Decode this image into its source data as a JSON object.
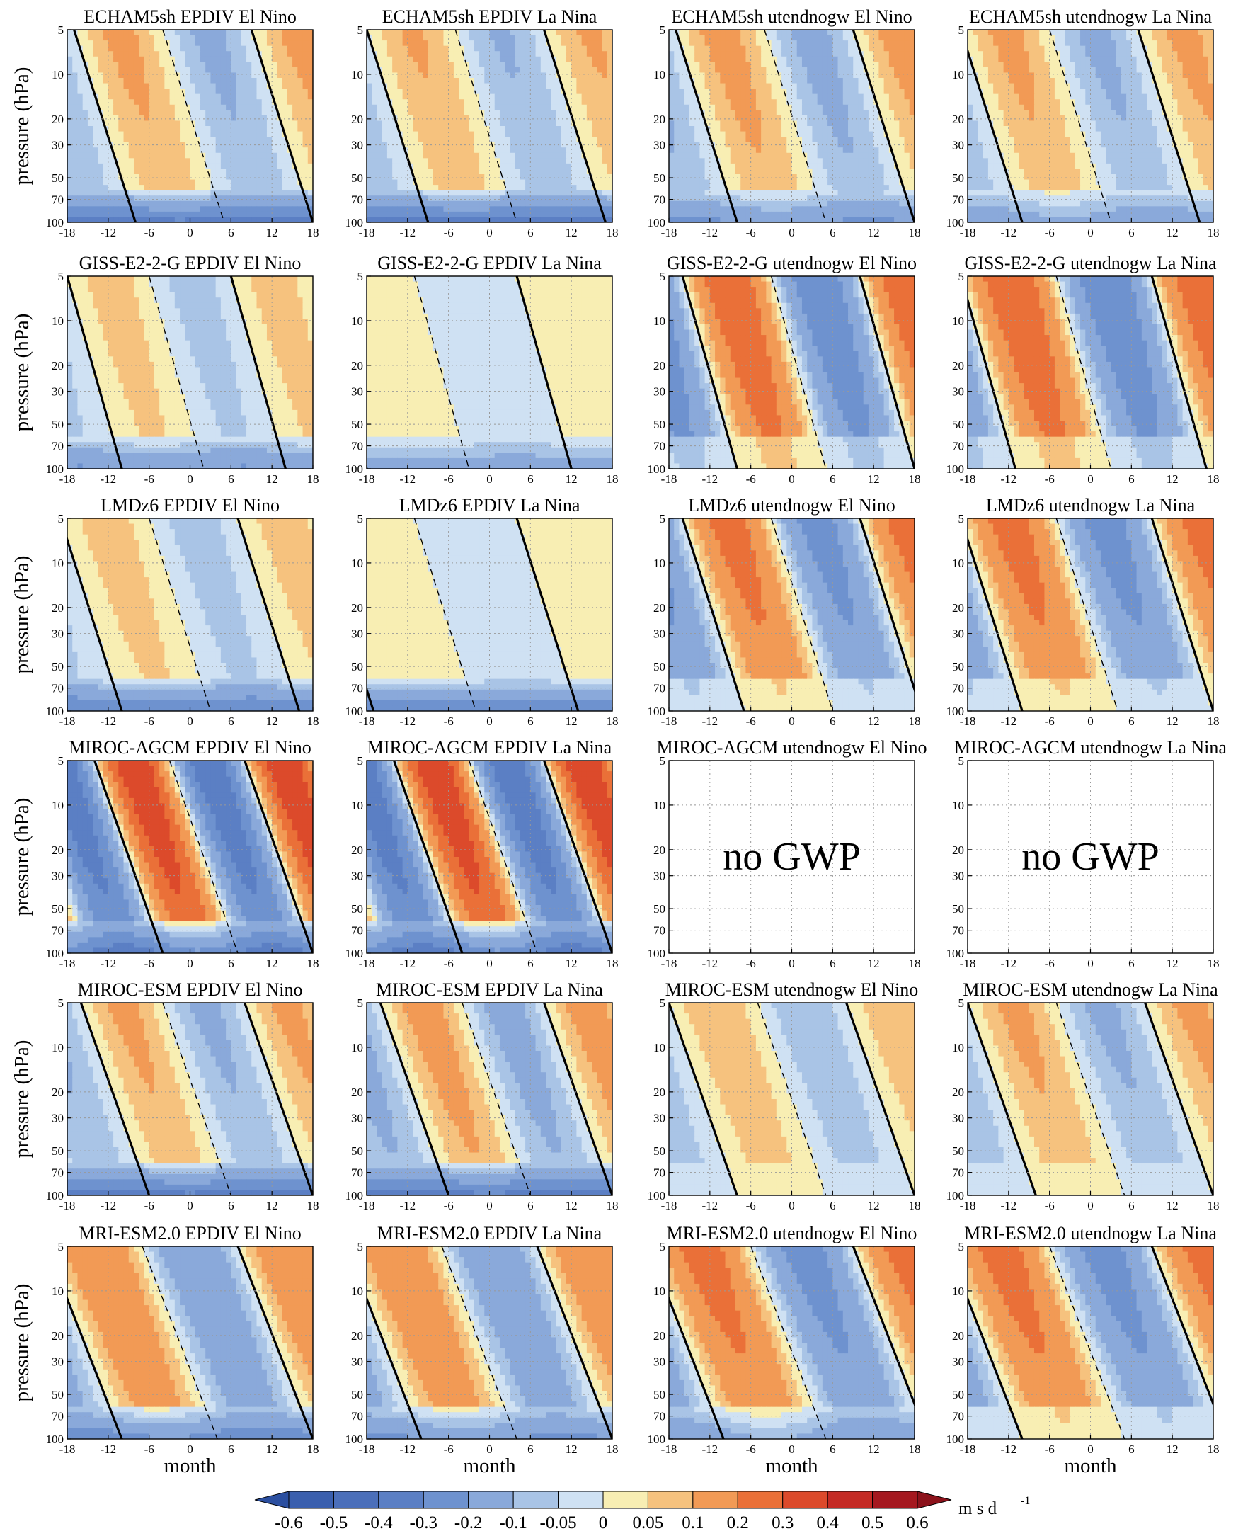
{
  "chart_data": {
    "type": "heatmap",
    "description_free": true,
    "ylabel": "pressure (hPa)",
    "xlabel": "month",
    "x_ticks": [
      -18,
      -12,
      -6,
      0,
      6,
      12,
      18
    ],
    "x_tick_labels": [
      "-18",
      "-12",
      "-6",
      "0",
      "6",
      "12",
      "18"
    ],
    "xlim": [
      -18,
      18
    ],
    "y_ticks": [
      5,
      10,
      20,
      30,
      50,
      70,
      100
    ],
    "y_tick_labels": [
      "5",
      "10",
      "20",
      "30",
      "50",
      "70",
      "100"
    ],
    "ylim": [
      100,
      5
    ],
    "y_scale": "log",
    "grid": true,
    "columns": [
      "EPDIV El Nino",
      "EPDIV La Nina",
      "utendnogw El Nino",
      "utendnogw La Nina"
    ],
    "models": [
      "ECHAM5sh",
      "GISS-E2-2-G",
      "LMDz6",
      "MIROC-AGCM",
      "MIROC-ESM",
      "MRI-ESM2.0"
    ],
    "panels": [
      {
        "title": "ECHAM5sh EPDIV El Nino",
        "period": 26,
        "phase": 9,
        "amp": 0.12,
        "tilt": 9,
        "low_band": -0.35,
        "empty": false,
        "empty_text": ""
      },
      {
        "title": "ECHAM5sh EPDIV La Nina",
        "period": 26,
        "phase": 8,
        "amp": 0.11,
        "tilt": 9,
        "low_band": -0.35,
        "empty": false,
        "empty_text": ""
      },
      {
        "title": "ECHAM5sh utendnogw El Nino",
        "period": 26,
        "phase": 9,
        "amp": 0.13,
        "tilt": 9,
        "low_band": -0.2,
        "empty": false,
        "empty_text": ""
      },
      {
        "title": "ECHAM5sh utendnogw La Nina",
        "period": 26,
        "phase": 7,
        "amp": 0.12,
        "tilt": 9,
        "low_band": -0.15,
        "empty": false,
        "empty_text": ""
      },
      {
        "title": "GISS-E2-2-G EPDIV El Nino",
        "period": 24,
        "phase": 6,
        "amp": 0.08,
        "tilt": 8,
        "low_band": -0.2,
        "empty": false,
        "empty_text": ""
      },
      {
        "title": "GISS-E2-2-G EPDIV La Nina",
        "period": 30,
        "phase": 4,
        "amp": 0.05,
        "tilt": 8,
        "low_band": -0.15,
        "empty": false,
        "empty_text": ""
      },
      {
        "title": "GISS-E2-2-G utendnogw El Nino",
        "period": 26,
        "phase": 10,
        "amp": 0.3,
        "tilt": 8,
        "low_band": 0,
        "empty": false,
        "empty_text": ""
      },
      {
        "title": "GISS-E2-2-G utendnogw La Nina",
        "period": 28,
        "phase": 9,
        "amp": 0.3,
        "tilt": 8,
        "low_band": 0,
        "empty": false,
        "empty_text": ""
      },
      {
        "title": "LMDz6 EPDIV El Nino",
        "period": 26,
        "phase": 7,
        "amp": 0.08,
        "tilt": 9,
        "low_band": -0.3,
        "empty": false,
        "empty_text": ""
      },
      {
        "title": "LMDz6 EPDIV La Nina",
        "period": 30,
        "phase": 4,
        "amp": 0.04,
        "tilt": 9,
        "low_band": -0.3,
        "empty": false,
        "empty_text": ""
      },
      {
        "title": "LMDz6 utendnogw El Nino",
        "period": 26,
        "phase": 10,
        "amp": 0.25,
        "tilt": 9,
        "low_band": 0,
        "empty": false,
        "empty_text": ""
      },
      {
        "title": "LMDz6 utendnogw La Nina",
        "period": 28,
        "phase": 9,
        "amp": 0.25,
        "tilt": 9,
        "low_band": 0,
        "empty": false,
        "empty_text": ""
      },
      {
        "title": "MIROC-AGCM EPDIV El Nino",
        "period": 22,
        "phase": 8,
        "amp": 0.4,
        "tilt": 10,
        "low_band": -0.3,
        "empty": false,
        "empty_text": ""
      },
      {
        "title": "MIROC-AGCM EPDIV La Nina",
        "period": 22,
        "phase": 8,
        "amp": 0.4,
        "tilt": 10,
        "low_band": -0.3,
        "empty": false,
        "empty_text": ""
      },
      {
        "title": "MIROC-AGCM utendnogw El Nino",
        "period": 0,
        "phase": 0,
        "amp": 0,
        "tilt": 0,
        "low_band": 0,
        "empty": true,
        "empty_text": "no GWP"
      },
      {
        "title": "MIROC-AGCM utendnogw La Nina",
        "period": 0,
        "phase": 0,
        "amp": 0,
        "tilt": 0,
        "low_band": 0,
        "empty": true,
        "empty_text": "no GWP"
      },
      {
        "title": "MIROC-ESM EPDIV El Nino",
        "period": 24,
        "phase": 8,
        "amp": 0.12,
        "tilt": 10,
        "low_band": -0.35,
        "empty": false,
        "empty_text": ""
      },
      {
        "title": "MIROC-ESM EPDIV La Nina",
        "period": 24,
        "phase": 8,
        "amp": 0.14,
        "tilt": 10,
        "low_band": -0.35,
        "empty": false,
        "empty_text": ""
      },
      {
        "title": "MIROC-ESM utendnogw El Nino",
        "period": 26,
        "phase": 8,
        "amp": 0.1,
        "tilt": 10,
        "low_band": 0,
        "empty": false,
        "empty_text": ""
      },
      {
        "title": "MIROC-ESM utendnogw La Nina",
        "period": 26,
        "phase": 8,
        "amp": 0.12,
        "tilt": 10,
        "low_band": 0,
        "empty": false,
        "empty_text": ""
      },
      {
        "title": "MRI-ESM2.0 EPDIV El Nino",
        "period": 28,
        "phase": 7,
        "amp": 0.2,
        "tilt": 11,
        "low_band": -0.25,
        "empty": false,
        "empty_text": ""
      },
      {
        "title": "MRI-ESM2.0 EPDIV La Nina",
        "period": 28,
        "phase": 7,
        "amp": 0.2,
        "tilt": 11,
        "low_band": -0.2,
        "empty": false,
        "empty_text": ""
      },
      {
        "title": "MRI-ESM2.0 utendnogw El Nino",
        "period": 30,
        "phase": 9,
        "amp": 0.25,
        "tilt": 11,
        "low_band": -0.15,
        "empty": false,
        "empty_text": ""
      },
      {
        "title": "MRI-ESM2.0 utendnogw La Nina",
        "period": 30,
        "phase": 9,
        "amp": 0.25,
        "tilt": 11,
        "low_band": 0,
        "empty": false,
        "empty_text": ""
      }
    ],
    "colorbar": {
      "levels": [
        -0.6,
        -0.5,
        -0.4,
        -0.3,
        -0.2,
        -0.1,
        -0.05,
        0,
        0.05,
        0.1,
        0.2,
        0.3,
        0.4,
        0.5,
        0.6
      ],
      "labels": [
        "-0.6",
        "-0.5",
        "-0.4",
        "-0.3",
        "-0.2",
        "-0.1",
        "-0.05",
        "0",
        "0.05",
        "0.1",
        "0.2",
        "0.3",
        "0.4",
        "0.5",
        "0.6"
      ],
      "colors": [
        "#2b4fa0",
        "#3a5fae",
        "#4b6fba",
        "#5b7fc4",
        "#6e92cf",
        "#8aa9da",
        "#a9c4e6",
        "#cfe1f3",
        "#f8eeb3",
        "#f6c27e",
        "#f29a55",
        "#ea7038",
        "#dc4a2b",
        "#c42a24",
        "#a5181f",
        "#8c121b"
      ],
      "unit": "m s d",
      "unit_exp": "-1"
    }
  }
}
